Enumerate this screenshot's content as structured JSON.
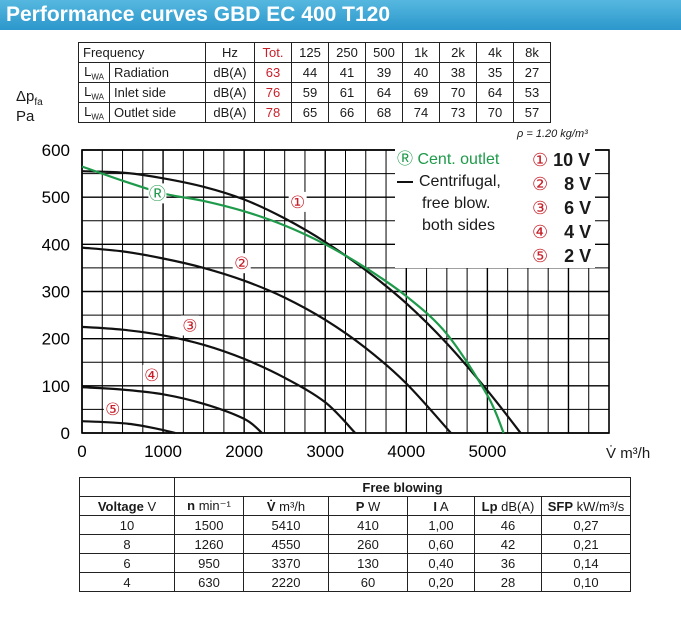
{
  "title": "Performance curves GBD EC 400 T120",
  "sound_table": {
    "header": {
      "c0": "Frequency",
      "unit": "Hz",
      "tot": "Tot.",
      "bands": [
        "125",
        "250",
        "500",
        "1k",
        "2k",
        "4k",
        "8k"
      ]
    },
    "rows": [
      {
        "lwa": "L",
        "lwa_sub": "WA",
        "label": "Radiation",
        "unit": "dB(A)",
        "tot": "63",
        "values": [
          "44",
          "41",
          "39",
          "40",
          "38",
          "35",
          "27"
        ]
      },
      {
        "lwa": "L",
        "lwa_sub": "WA",
        "label": "Inlet side",
        "unit": "dB(A)",
        "tot": "76",
        "values": [
          "59",
          "61",
          "64",
          "69",
          "70",
          "64",
          "53"
        ]
      },
      {
        "lwa": "L",
        "lwa_sub": "WA",
        "label": "Outlet side",
        "unit": "dB(A)",
        "tot": "78",
        "values": [
          "65",
          "66",
          "68",
          "74",
          "73",
          "70",
          "57"
        ]
      }
    ]
  },
  "density": "ρ = 1.20 kg/m³",
  "y_axis_label": {
    "symbol": "Δp",
    "sub": "fa",
    "unit": "Pa"
  },
  "x_axis_label": {
    "symbol": "V̇",
    "unit": "m³/h"
  },
  "legend": {
    "cent_marker": "Ⓡ",
    "cent_label": "Cent. outlet",
    "centrifugal_lines": [
      "Centrifugal,",
      "free blow.",
      "both sides"
    ],
    "voltages": [
      {
        "marker": "①",
        "label": "10 V"
      },
      {
        "marker": "②",
        "label": "8 V"
      },
      {
        "marker": "③",
        "label": "6 V"
      },
      {
        "marker": "④",
        "label": "4 V"
      },
      {
        "marker": "⑤",
        "label": "2 V"
      }
    ]
  },
  "colors": {
    "header": "#3aa6d6",
    "green": "#1e9a4a",
    "red": "#c8202a",
    "curve": "#111111"
  },
  "chart_data": {
    "type": "line",
    "xlim": [
      0,
      6500
    ],
    "ylim": [
      0,
      600
    ],
    "xticks": [
      0,
      1000,
      2000,
      3000,
      4000,
      5000
    ],
    "yticks": [
      0,
      100,
      200,
      300,
      400,
      500,
      600
    ],
    "grid": true,
    "series": [
      {
        "name": "①",
        "label_at": [
          2660,
          490
        ],
        "points": [
          [
            0,
            555
          ],
          [
            500,
            552
          ],
          [
            1000,
            540
          ],
          [
            1500,
            522
          ],
          [
            2000,
            495
          ],
          [
            2500,
            455
          ],
          [
            3000,
            405
          ],
          [
            3500,
            345
          ],
          [
            4000,
            275
          ],
          [
            4500,
            190
          ],
          [
            5000,
            90
          ],
          [
            5410,
            0
          ]
        ]
      },
      {
        "name": "②",
        "label_at": [
          1970,
          360
        ],
        "points": [
          [
            0,
            393
          ],
          [
            500,
            385
          ],
          [
            1000,
            370
          ],
          [
            1500,
            350
          ],
          [
            2000,
            323
          ],
          [
            2500,
            287
          ],
          [
            3000,
            240
          ],
          [
            3500,
            180
          ],
          [
            4000,
            105
          ],
          [
            4550,
            0
          ]
        ]
      },
      {
        "name": "③",
        "label_at": [
          1330,
          228
        ],
        "points": [
          [
            0,
            225
          ],
          [
            500,
            219
          ],
          [
            1000,
            207
          ],
          [
            1500,
            187
          ],
          [
            2000,
            157
          ],
          [
            2500,
            117
          ],
          [
            3000,
            65
          ],
          [
            3370,
            0
          ]
        ]
      },
      {
        "name": "④",
        "label_at": [
          860,
          123
        ],
        "points": [
          [
            0,
            97
          ],
          [
            500,
            92
          ],
          [
            1000,
            82
          ],
          [
            1500,
            62
          ],
          [
            2000,
            30
          ],
          [
            2220,
            0
          ]
        ]
      },
      {
        "name": "⑤",
        "label_at": [
          380,
          51
        ],
        "points": [
          [
            0,
            25
          ],
          [
            300,
            23
          ],
          [
            600,
            19
          ],
          [
            900,
            10
          ],
          [
            1150,
            0
          ]
        ]
      },
      {
        "name": "Ⓡ",
        "label_at": [
          930,
          508
        ],
        "color": "green",
        "points": [
          [
            0,
            565
          ],
          [
            500,
            535
          ],
          [
            1000,
            508
          ],
          [
            1500,
            492
          ],
          [
            2000,
            470
          ],
          [
            2500,
            440
          ],
          [
            3000,
            400
          ],
          [
            3500,
            350
          ],
          [
            4000,
            290
          ],
          [
            4500,
            210
          ],
          [
            5000,
            80
          ],
          [
            5200,
            0
          ]
        ]
      }
    ]
  },
  "free_blowing": {
    "title": "Free blowing",
    "headers": [
      {
        "bold": "Voltage",
        "unit": " V"
      },
      {
        "bold": "n",
        "unit": " min⁻¹"
      },
      {
        "bold": "V̇",
        "unit": " m³/h"
      },
      {
        "bold": "P",
        "unit": " W"
      },
      {
        "bold": "I",
        "unit": " A"
      },
      {
        "bold": "Lp",
        "unit": " dB(A)"
      },
      {
        "bold": "SFP",
        "unit": " kW/m³/s"
      }
    ],
    "rows": [
      [
        "10",
        "1500",
        "5410",
        "410",
        "1,00",
        "46",
        "0,27"
      ],
      [
        "8",
        "1260",
        "4550",
        "260",
        "0,60",
        "42",
        "0,21"
      ],
      [
        "6",
        "950",
        "3370",
        "130",
        "0,40",
        "36",
        "0,14"
      ],
      [
        "4",
        "630",
        "2220",
        "60",
        "0,20",
        "28",
        "0,10"
      ]
    ]
  }
}
